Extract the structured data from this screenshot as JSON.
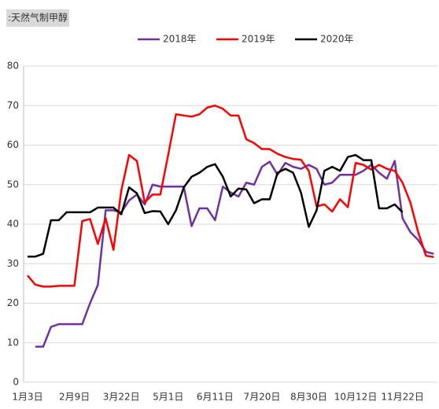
{
  "chart_data": {
    "type": "line",
    "title": ":天然气制甲醇",
    "categories": [
      "1月3日",
      null,
      null,
      null,
      null,
      null,
      "2月9日",
      null,
      null,
      null,
      null,
      null,
      "3月22日",
      null,
      null,
      null,
      null,
      null,
      "5月1日",
      null,
      null,
      null,
      null,
      null,
      "6月11日",
      null,
      null,
      null,
      null,
      null,
      "7月20日",
      null,
      null,
      null,
      null,
      null,
      "8月30日",
      null,
      null,
      null,
      null,
      null,
      "10月12日",
      null,
      null,
      null,
      null,
      null,
      "11月22日",
      null,
      null,
      null,
      null
    ],
    "series": [
      {
        "name": "2018年",
        "color": "#7030a0",
        "values": [
          null,
          9,
          9,
          14,
          14.7,
          14.7,
          14.7,
          14.7,
          20,
          24.6,
          43.5,
          43.5,
          43,
          46,
          47.5,
          45,
          50,
          49.5,
          49.5,
          49.5,
          49.5,
          39.5,
          44,
          44,
          41,
          49.5,
          48,
          47,
          50.5,
          50,
          54.5,
          55.8,
          52.5,
          55.5,
          54.5,
          54,
          55,
          54,
          50,
          50.5,
          52.5,
          52.5,
          52.5,
          53.5,
          55,
          53,
          51.5,
          56,
          41.5,
          38,
          36,
          33,
          32.5
        ]
      },
      {
        "name": "2019年",
        "color": "#ff0000",
        "values": [
          27,
          24.7,
          24.2,
          24.2,
          24.4,
          24.4,
          24.4,
          40.8,
          41.3,
          35,
          41.5,
          33.5,
          48.5,
          57.5,
          56,
          45.5,
          47.5,
          47.5,
          57.5,
          67.8,
          67.5,
          67.2,
          67.8,
          69.5,
          70,
          69.2,
          67.5,
          67.5,
          61.5,
          60.5,
          59,
          59,
          57.8,
          57,
          56.5,
          56.3,
          53.5,
          44.5,
          45,
          43.2,
          46.3,
          44.3,
          55.5,
          55,
          53.8,
          55,
          54,
          53.5,
          50.5,
          45.5,
          38,
          32,
          31.7
        ]
      },
      {
        "name": "2020年",
        "color": "#000000",
        "values": [
          31.8,
          31.8,
          32.5,
          41,
          41,
          43,
          43,
          43,
          43,
          44.2,
          44.2,
          44.2,
          42.5,
          49.3,
          47.8,
          42.8,
          43.3,
          43.2,
          40,
          43.5,
          49.3,
          52,
          53,
          54.5,
          55.2,
          52,
          47,
          49,
          48.8,
          45.3,
          46.3,
          46.3,
          53,
          54,
          53,
          48,
          39.3,
          43.5,
          53.5,
          54.5,
          53.5,
          57,
          57.5,
          56.2,
          56.2,
          44,
          44,
          45,
          43,
          null,
          null,
          null,
          null
        ]
      }
    ],
    "ylim": [
      0,
      80
    ],
    "yticks": [
      0,
      10,
      20,
      30,
      40,
      50,
      60,
      70,
      80
    ],
    "grid": true
  }
}
